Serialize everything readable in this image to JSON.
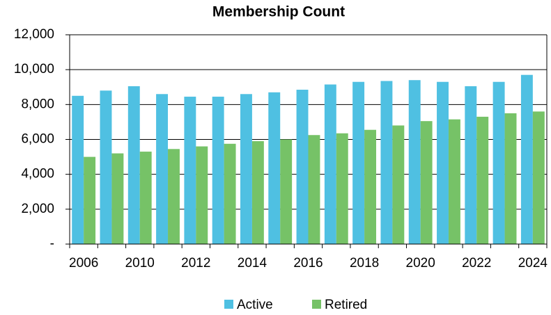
{
  "chart_data": {
    "type": "bar",
    "title": "Membership Count",
    "categories": [
      "2006",
      null,
      "2010",
      null,
      "2012",
      null,
      "2014",
      null,
      "2016",
      null,
      "2018",
      null,
      "2020",
      null,
      "2022",
      null,
      "2024"
    ],
    "series": [
      {
        "name": "Active",
        "color": "#4fc0e2",
        "values": [
          8500,
          8800,
          9050,
          8600,
          8450,
          8450,
          8600,
          8700,
          8850,
          9150,
          9300,
          9350,
          9400,
          9300,
          9050,
          9300,
          9700
        ]
      },
      {
        "name": "Retired",
        "color": "#76c267",
        "values": [
          5000,
          5200,
          5300,
          5450,
          5600,
          5750,
          5900,
          6000,
          6250,
          6350,
          6550,
          6800,
          7050,
          7150,
          7300,
          7500,
          7600
        ]
      }
    ],
    "ylim": [
      0,
      12000
    ],
    "yticks": [
      {
        "value": 0,
        "label": "-"
      },
      {
        "value": 2000,
        "label": "2,000"
      },
      {
        "value": 4000,
        "label": "4,000"
      },
      {
        "value": 6000,
        "label": "6,000"
      },
      {
        "value": 8000,
        "label": "8,000"
      },
      {
        "value": 10000,
        "label": "10,000"
      },
      {
        "value": 12000,
        "label": "12,000"
      }
    ],
    "grid": true,
    "legend": "bottom"
  }
}
